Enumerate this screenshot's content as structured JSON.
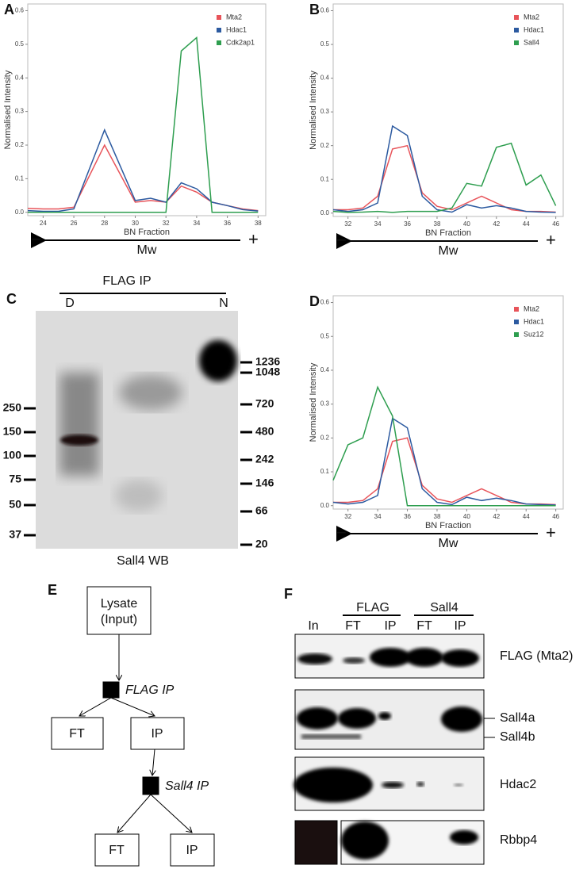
{
  "chart_data": [
    {
      "type": "line",
      "panel": "A",
      "xlabel": "BN Fraction",
      "ylabel": "Normalised Intensity",
      "annotations": {
        "minus": "−",
        "direction": "Mw",
        "plus": "+"
      },
      "x": [
        23,
        24,
        25,
        26,
        28,
        30,
        31,
        32,
        33,
        34,
        35,
        36,
        37,
        38
      ],
      "series": [
        {
          "name": "Mta2",
          "color": "#e8545a",
          "values": [
            0.012,
            0.01,
            0.01,
            0.015,
            0.2,
            0.03,
            0.035,
            0.03,
            0.078,
            0.06,
            0.03,
            0.02,
            0.01,
            0.005
          ]
        },
        {
          "name": "Hdac1",
          "color": "#2c5aa0",
          "values": [
            0.005,
            0.003,
            0.003,
            0.01,
            0.245,
            0.035,
            0.042,
            0.03,
            0.088,
            0.07,
            0.03,
            0.02,
            0.008,
            0.004
          ]
        },
        {
          "name": "Cdk2ap1",
          "color": "#2e9e4f",
          "values": [
            0,
            0,
            0,
            0,
            0,
            0,
            0,
            0,
            0.48,
            0.52,
            0,
            0,
            0,
            0
          ]
        }
      ],
      "xlim": [
        23,
        38.5
      ],
      "xticks": [
        24,
        26,
        28,
        30,
        32,
        34,
        36,
        38
      ],
      "ylim": [
        -0.01,
        0.62
      ],
      "yticks": [
        {
          "value": 0,
          "label": "0.0"
        },
        0.1,
        0.2,
        0.3,
        0.4,
        0.5,
        0.6
      ]
    },
    {
      "type": "line",
      "panel": "B",
      "xlabel": "BN Fraction",
      "ylabel": "Normalised Intensity",
      "annotations": {
        "minus": "−",
        "direction": "Mw",
        "plus": "+"
      },
      "x": [
        31,
        32,
        33,
        34,
        35,
        36,
        37,
        38,
        39,
        40,
        41,
        42,
        43,
        44,
        45,
        46
      ],
      "series": [
        {
          "name": "Mta2",
          "color": "#e8545a",
          "values": [
            0.01,
            0.01,
            0.015,
            0.05,
            0.19,
            0.2,
            0.06,
            0.02,
            0.01,
            0.03,
            0.05,
            0.03,
            0.01,
            0.005,
            0.005,
            0.003
          ]
        },
        {
          "name": "Hdac1",
          "color": "#2c5aa0",
          "values": [
            0.01,
            0.005,
            0.01,
            0.03,
            0.258,
            0.23,
            0.05,
            0.01,
            0.003,
            0.025,
            0.015,
            0.022,
            0.015,
            0.005,
            0.003,
            0.002
          ]
        },
        {
          "name": "Sall4",
          "color": "#2e9e4f",
          "values": [
            0.005,
            0.002,
            0.003,
            0.005,
            0.002,
            0.005,
            0.005,
            0.005,
            0.015,
            0.088,
            0.08,
            0.195,
            0.207,
            0.083,
            0.113,
            0.022
          ]
        }
      ],
      "xlim": [
        31,
        46.5
      ],
      "xticks": [
        32,
        34,
        36,
        38,
        40,
        42,
        44,
        46
      ],
      "ylim": [
        -0.01,
        0.62
      ],
      "yticks": [
        {
          "value": 0,
          "label": "0.0"
        },
        0.1,
        0.2,
        0.3,
        0.4,
        0.5,
        0.6
      ]
    },
    {
      "type": "line",
      "panel": "D",
      "xlabel": "BN Fraction",
      "ylabel": "Normalised Intensity",
      "annotations": {
        "minus": "−",
        "direction": "Mw",
        "plus": "+"
      },
      "x": [
        31,
        32,
        33,
        34,
        35,
        36,
        37,
        38,
        39,
        40,
        41,
        42,
        43,
        44,
        45,
        46
      ],
      "series": [
        {
          "name": "Mta2",
          "color": "#e8545a",
          "values": [
            0.01,
            0.01,
            0.015,
            0.05,
            0.19,
            0.2,
            0.06,
            0.02,
            0.01,
            0.03,
            0.05,
            0.03,
            0.01,
            0.005,
            0.005,
            0.003
          ]
        },
        {
          "name": "Hdac1",
          "color": "#2c5aa0",
          "values": [
            0.01,
            0.005,
            0.01,
            0.03,
            0.258,
            0.23,
            0.05,
            0.01,
            0.003,
            0.025,
            0.015,
            0.022,
            0.015,
            0.005,
            0.003,
            0.002
          ]
        },
        {
          "name": "Suz12",
          "color": "#2e9e4f",
          "values": [
            0.075,
            0.18,
            0.2,
            0.35,
            0.265,
            0,
            0,
            0,
            0,
            0,
            0,
            0,
            0,
            0,
            0,
            0
          ]
        }
      ],
      "xlim": [
        31,
        46.5
      ],
      "xticks": [
        32,
        34,
        36,
        38,
        40,
        42,
        44,
        46
      ],
      "ylim": [
        -0.01,
        0.62
      ],
      "yticks": [
        {
          "value": 0,
          "label": "0.0"
        },
        0.1,
        0.2,
        0.3,
        0.4,
        0.5,
        0.6
      ]
    }
  ],
  "blot_c": {
    "panel": "C",
    "title": "FLAG IP",
    "lanes": [
      "D",
      "N"
    ],
    "caption": "Sall4 WB",
    "left_markers": [
      250,
      150,
      100,
      75,
      50,
      37
    ],
    "right_markers": [
      1236,
      1048,
      720,
      480,
      242,
      146,
      66,
      20
    ]
  },
  "flowchart": {
    "panel": "E",
    "input": [
      "Lysate",
      "(Input)"
    ],
    "step1": "FLAG IP",
    "ft1": "FT",
    "ip1": "IP",
    "step2": "Sall4 IP",
    "ft2": "FT",
    "ip2": "IP"
  },
  "blot_f": {
    "panel": "F",
    "groups": [
      "FLAG",
      "Sall4"
    ],
    "lanes": [
      "In",
      "FT",
      "IP",
      "FT",
      "IP"
    ],
    "rows": [
      "FLAG (Mta2)",
      "Sall4a",
      "Sall4b",
      "Hdac2",
      "Rbbp4"
    ]
  }
}
